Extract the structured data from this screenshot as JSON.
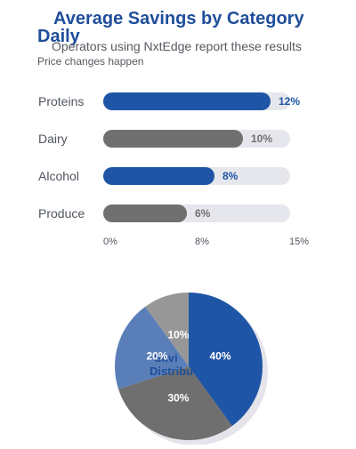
{
  "header": {
    "title": "Average Savings by Category",
    "title_wrap": "Daily",
    "subtitle": "Operators using NxtEdge report these results",
    "note": "Price changes happen"
  },
  "colors": {
    "blue": "#1f55a6",
    "gray": "#707070",
    "track": "#e6e7ec"
  },
  "chart_data": [
    {
      "type": "bar",
      "orientation": "horizontal",
      "categories": [
        "Proteins",
        "Dairy",
        "Alcohol",
        "Produce"
      ],
      "values": [
        12,
        10,
        8,
        6
      ],
      "value_labels": [
        "12%",
        "10%",
        "8%",
        "6%"
      ],
      "bar_colors": [
        "#1f55a6",
        "#707070",
        "#1f55a6",
        "#707070"
      ],
      "xlim": [
        0,
        15
      ],
      "ticks": [
        "0%",
        "8%",
        "15%"
      ],
      "grid": false
    },
    {
      "type": "pie",
      "center_label_1": "Savi",
      "center_label_2": "Distribu",
      "slices": [
        {
          "value": 40,
          "label": "40%",
          "color": "#1f55a6"
        },
        {
          "value": 30,
          "label": "30%",
          "color": "#6f6f6f"
        },
        {
          "value": 20,
          "label": "20%",
          "color": "#5a7fb8"
        },
        {
          "value": 10,
          "label": "10%",
          "color": "#979797"
        }
      ]
    }
  ]
}
